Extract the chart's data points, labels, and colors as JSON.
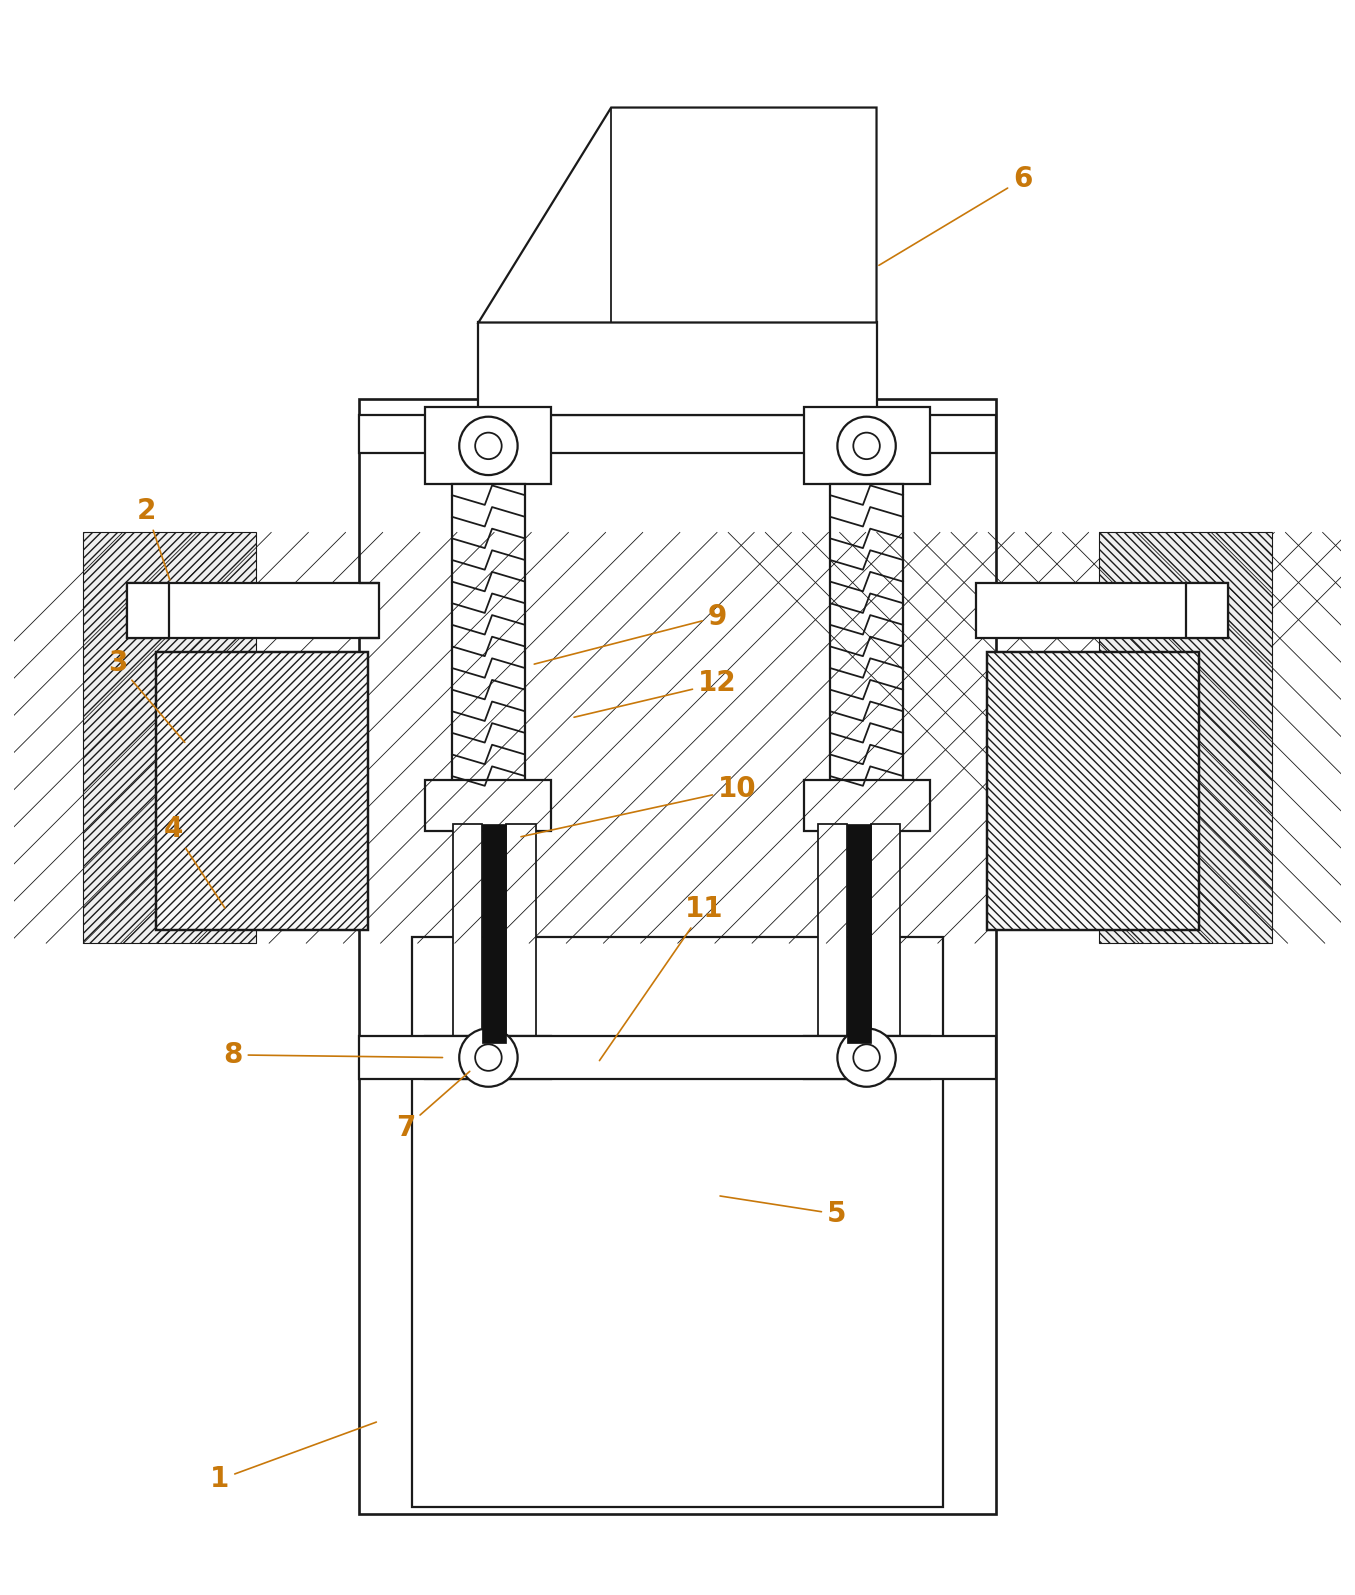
{
  "background_color": "#ffffff",
  "line_color": "#1a1a1a",
  "label_color": "#c8780a",
  "lw": 1.6,
  "figsize": [
    13.55,
    15.95
  ],
  "dpi": 100
}
